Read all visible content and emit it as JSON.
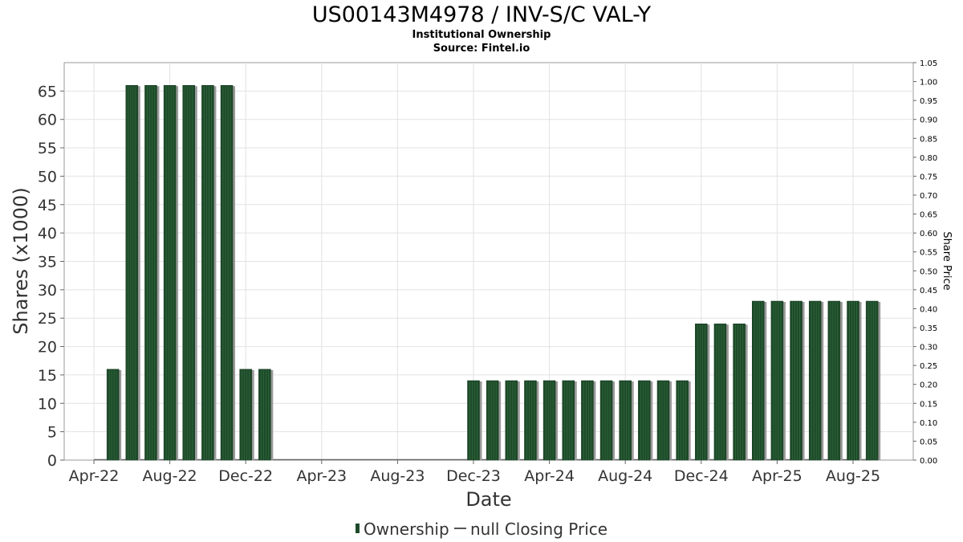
{
  "chart_data": {
    "type": "bar",
    "title": "US00143M4978 / INV-S/C VAL-Y",
    "subtitle": "Institutional Ownership",
    "source": "Source: Fintel.io",
    "xlabel": "Date",
    "ylabel": "Shares (x1000)",
    "y2label": "Share Price",
    "ylim": [
      0,
      70
    ],
    "y2lim": [
      0,
      1.05
    ],
    "grid": true,
    "legend_position": "bottom",
    "yticks": [
      "0",
      "5",
      "10",
      "15",
      "20",
      "25",
      "30",
      "35",
      "40",
      "45",
      "50",
      "55",
      "60",
      "65"
    ],
    "y2ticks": [
      "0.00",
      "0.05",
      "0.10",
      "0.15",
      "0.20",
      "0.25",
      "0.30",
      "0.35",
      "0.40",
      "0.45",
      "0.50",
      "0.55",
      "0.60",
      "0.65",
      "0.70",
      "0.75",
      "0.80",
      "0.85",
      "0.90",
      "0.95",
      "1.00",
      "1.05"
    ],
    "xticks": [
      "Apr-22",
      "Aug-22",
      "Dec-22",
      "Apr-23",
      "Aug-23",
      "Dec-23",
      "Apr-24",
      "Aug-24",
      "Dec-24",
      "Apr-25",
      "Aug-25"
    ],
    "series": [
      {
        "name": "Ownership",
        "color": "#1e4a2a",
        "x": [
          "2022-05",
          "2022-06",
          "2022-07",
          "2022-08",
          "2022-09",
          "2022-10",
          "2022-11",
          "2022-12",
          "2023-01",
          "2023-12",
          "2024-01",
          "2024-02",
          "2024-03",
          "2024-04",
          "2024-05",
          "2024-06",
          "2024-07",
          "2024-08",
          "2024-09",
          "2024-10",
          "2024-11",
          "2024-12",
          "2025-01",
          "2025-02",
          "2025-03",
          "2025-04",
          "2025-05",
          "2025-06",
          "2025-07",
          "2025-08",
          "2025-09"
        ],
        "values": [
          16,
          66,
          66,
          66,
          66,
          66,
          66,
          16,
          16,
          14,
          14,
          14,
          14,
          14,
          14,
          14,
          14,
          14,
          14,
          14,
          14,
          24,
          24,
          24,
          28,
          28,
          28,
          28,
          28,
          28,
          28
        ]
      }
    ],
    "legend": [
      {
        "label": "Ownership",
        "color": "#1e4a2a"
      },
      {
        "label": "null Closing Price",
        "color": "#555555"
      }
    ]
  }
}
